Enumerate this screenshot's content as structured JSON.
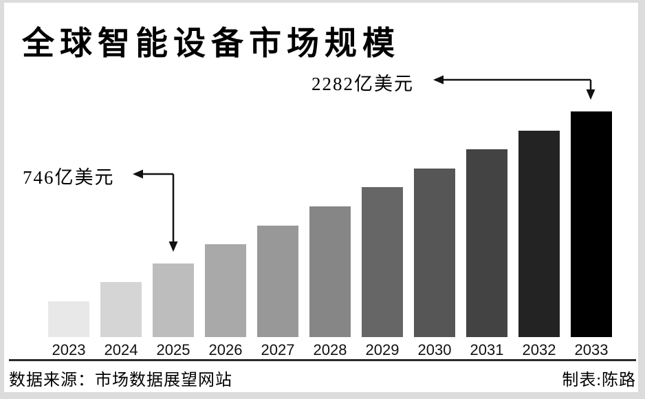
{
  "title": "全球智能设备市场规模",
  "annotations": {
    "peak": {
      "label": "2282亿美元",
      "target_year": "2033"
    },
    "mid": {
      "label": "746亿美元",
      "target_year": "2025"
    }
  },
  "chart_data": {
    "type": "bar",
    "title": "全球智能设备市场规模",
    "unit": "亿美元",
    "categories": [
      "2023",
      "2024",
      "2025",
      "2026",
      "2027",
      "2028",
      "2029",
      "2030",
      "2031",
      "2032",
      "2033"
    ],
    "values": [
      362,
      554,
      746,
      938,
      1130,
      1322,
      1514,
      1706,
      1898,
      2090,
      2282
    ],
    "labeled_points": [
      {
        "year": "2025",
        "value": 746,
        "label": "746亿美元"
      },
      {
        "year": "2033",
        "value": 2282,
        "label": "2282亿美元"
      }
    ],
    "ylim": [
      0,
      2282
    ],
    "grid": false,
    "legend": false,
    "bar_colors": [
      "#e8e8e8",
      "#d5d5d5",
      "#bdbdbd",
      "#a9a9a9",
      "#989898",
      "#868686",
      "#666666",
      "#565656",
      "#434343",
      "#232323",
      "#000000"
    ]
  },
  "footer": {
    "source": "数据来源：市场数据展望网站",
    "credit": "制表:陈路"
  },
  "colors": {
    "frame_background": "#dcdcdc",
    "canvas_background": "#ffffff",
    "text": "#000000",
    "divider": "#2a2a2a",
    "arrow": "#111111"
  }
}
